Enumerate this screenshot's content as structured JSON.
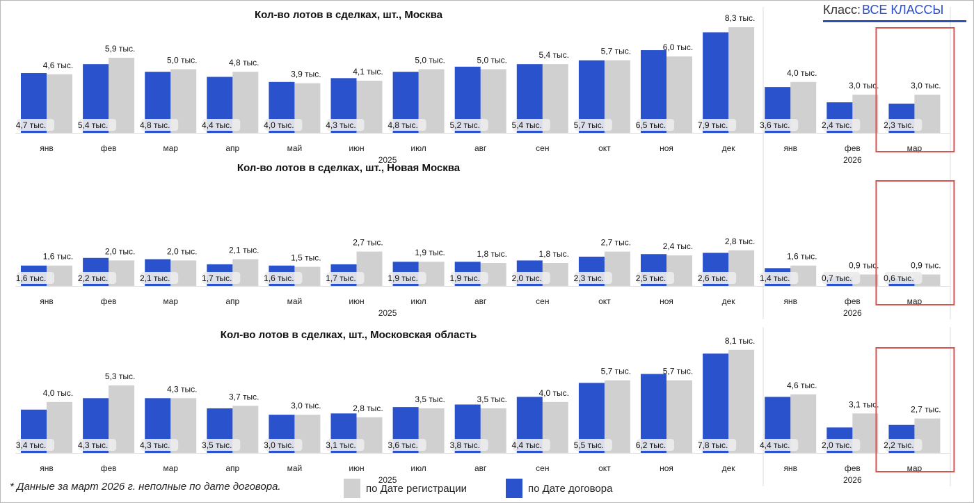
{
  "header": {
    "class_label": "Класс:",
    "class_value": "ВСЕ КЛАССЫ"
  },
  "footnote": "* Данные за март 2026 г. неполные по дате договора.",
  "legend": {
    "registration": "по Дате регистрации",
    "contract": "по Дате договора"
  },
  "colors": {
    "contract": "#2a52cc",
    "registration": "#d0d0d0",
    "highlight": "#d9534f",
    "label_bg": "#ececec"
  },
  "chart_data": [
    {
      "type": "bar",
      "title": "Кол-во лотов в сделках, шт.,  Москва",
      "categories": [
        "янв",
        "фев",
        "мар",
        "апр",
        "май",
        "июн",
        "июл",
        "авг",
        "сен",
        "окт",
        "ноя",
        "дек",
        "янв",
        "фев",
        "мар"
      ],
      "years": [
        {
          "label": "2025",
          "from": 0,
          "to": 11
        },
        {
          "label": "2026",
          "from": 12,
          "to": 14
        }
      ],
      "series": [
        {
          "name": "по Дате договора",
          "values": [
            4.7,
            5.4,
            4.8,
            4.4,
            4.0,
            4.3,
            4.8,
            5.2,
            5.4,
            5.7,
            6.5,
            7.9,
            3.6,
            2.4,
            2.3
          ],
          "labels": [
            "4,7 тыс.",
            "5,4 тыс.",
            "4,8 тыс.",
            "4,4 тыс.",
            "4,0 тыс.",
            "4,3 тыс.",
            "4,8 тыс.",
            "5,2 тыс.",
            "5,4 тыс.",
            "5,7 тыс.",
            "6,5 тыс.",
            "7,9 тыс.",
            "3,6 тыс.",
            "2,4 тыс.",
            "2,3 тыс."
          ]
        },
        {
          "name": "по Дате регистрации",
          "values": [
            4.6,
            5.9,
            5.0,
            4.8,
            3.9,
            4.1,
            5.0,
            5.0,
            5.4,
            5.7,
            6.0,
            8.3,
            4.0,
            3.0,
            3.0
          ],
          "labels": [
            "4,6 тыс.",
            "5,9 тыс.",
            "5,0 тыс.",
            "4,8 тыс.",
            "3,9 тыс.",
            "4,1 тыс.",
            "5,0 тыс.",
            "5,0 тыс.",
            "5,4 тыс.",
            "5,7 тыс.",
            "6,0 тыс.",
            "8,3 тыс.",
            "4,0 тыс.",
            "3,0 тыс.",
            "3,0 тыс."
          ]
        }
      ],
      "highlight_category": 14
    },
    {
      "type": "bar",
      "title": "Кол-во лотов в сделках, шт.,  Новая Москва",
      "categories": [
        "янв",
        "фев",
        "мар",
        "апр",
        "май",
        "июн",
        "июл",
        "авг",
        "сен",
        "окт",
        "ноя",
        "дек",
        "янв",
        "фев",
        "мар"
      ],
      "years": [
        {
          "label": "2025",
          "from": 0,
          "to": 11
        },
        {
          "label": "2026",
          "from": 12,
          "to": 14
        }
      ],
      "series": [
        {
          "name": "по Дате договора",
          "values": [
            1.6,
            2.2,
            2.1,
            1.7,
            1.6,
            1.7,
            1.9,
            1.9,
            2.0,
            2.3,
            2.5,
            2.6,
            1.4,
            0.7,
            0.6
          ],
          "labels": [
            "1,6 тыс.",
            "2,2 тыс.",
            "2,1 тыс.",
            "1,7 тыс.",
            "1,6 тыс.",
            "1,7 тыс.",
            "1,9 тыс.",
            "1,9 тыс.",
            "2,0 тыс.",
            "2,3 тыс.",
            "2,5 тыс.",
            "2,6 тыс.",
            "1,4 тыс.",
            "0,7 тыс.",
            "0,6 тыс."
          ]
        },
        {
          "name": "по Дате регистрации",
          "values": [
            1.6,
            2.0,
            2.0,
            2.1,
            1.5,
            2.7,
            1.9,
            1.8,
            1.8,
            2.7,
            2.4,
            2.8,
            1.6,
            0.9,
            0.9
          ],
          "labels": [
            "1,6 тыс.",
            "2,0 тыс.",
            "2,0 тыс.",
            "2,1 тыс.",
            "1,5 тыс.",
            "2,7 тыс.",
            "1,9 тыс.",
            "1,8 тыс.",
            "1,8 тыс.",
            "2,7 тыс.",
            "2,4 тыс.",
            "2,8 тыс.",
            "1,6 тыс.",
            "0,9 тыс.",
            "0,9 тыс."
          ]
        }
      ],
      "highlight_category": 14
    },
    {
      "type": "bar",
      "title": "Кол-во лотов в сделках, шт.,  Московская область",
      "categories": [
        "янв",
        "фев",
        "мар",
        "апр",
        "май",
        "июн",
        "июл",
        "авг",
        "сен",
        "окт",
        "ноя",
        "дек",
        "янв",
        "фев",
        "мар"
      ],
      "years": [
        {
          "label": "2025",
          "from": 0,
          "to": 11
        },
        {
          "label": "2026",
          "from": 12,
          "to": 14
        }
      ],
      "series": [
        {
          "name": "по Дате договора",
          "values": [
            3.4,
            4.3,
            4.3,
            3.5,
            3.0,
            3.1,
            3.6,
            3.8,
            4.4,
            5.5,
            6.2,
            7.8,
            4.4,
            2.0,
            2.2
          ],
          "labels": [
            "3,4 тыс.",
            "4,3 тыс.",
            "4,3 тыс.",
            "3,5 тыс.",
            "3,0 тыс.",
            "3,1 тыс.",
            "3,6 тыс.",
            "3,8 тыс.",
            "4,4 тыс.",
            "5,5 тыс.",
            "6,2 тыс.",
            "7,8 тыс.",
            "4,4 тыс.",
            "2,0 тыс.",
            "2,2 тыс."
          ]
        },
        {
          "name": "по Дате регистрации",
          "values": [
            4.0,
            5.3,
            4.3,
            3.7,
            3.0,
            2.8,
            3.5,
            3.5,
            4.0,
            5.7,
            5.7,
            8.1,
            4.6,
            3.1,
            2.7
          ],
          "labels": [
            "4,0 тыс.",
            "5,3 тыс.",
            "4,3 тыс.",
            "3,7 тыс.",
            "3,0 тыс.",
            "2,8 тыс.",
            "3,5 тыс.",
            "3,5 тыс.",
            "4,0 тыс.",
            "5,7 тыс.",
            "5,7 тыс.",
            "8,1 тыс.",
            "4,6 тыс.",
            "3,1 тыс.",
            "2,7 тыс."
          ]
        }
      ],
      "highlight_category": 14
    }
  ]
}
